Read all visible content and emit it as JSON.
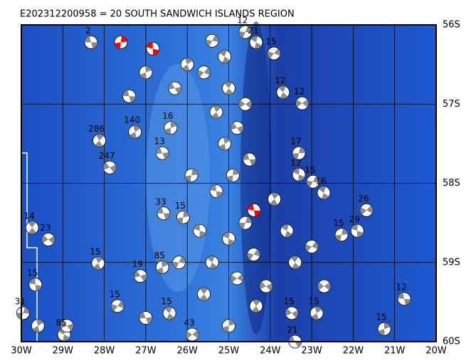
{
  "chart_data": {
    "type": "map",
    "title": "E202312200958 = 20 SOUTH SANDWICH ISLANDS REGION",
    "xlim": [
      -30,
      -20
    ],
    "ylim": [
      -60,
      -56
    ],
    "xticks": [
      {
        "value": -30,
        "label": "30W"
      },
      {
        "value": -29,
        "label": "29W"
      },
      {
        "value": -28,
        "label": "28W"
      },
      {
        "value": -27,
        "label": "27W"
      },
      {
        "value": -26,
        "label": "26W"
      },
      {
        "value": -25,
        "label": "25W"
      },
      {
        "value": -24,
        "label": "24W"
      },
      {
        "value": -23,
        "label": "23W"
      },
      {
        "value": -22,
        "label": "22W"
      },
      {
        "value": -21,
        "label": "21W"
      },
      {
        "value": -20,
        "label": "20W"
      }
    ],
    "yticks": [
      {
        "value": -56,
        "label": "56S"
      },
      {
        "value": -57,
        "label": "57S"
      },
      {
        "value": -58,
        "label": "58S"
      },
      {
        "value": -59,
        "label": "59S"
      },
      {
        "value": -60,
        "label": "60S"
      }
    ],
    "grid": true,
    "events": [
      {
        "lon": -28.32,
        "lat": -56.22,
        "label": "2"
      },
      {
        "lon": -27.6,
        "lat": -56.22,
        "color": "red"
      },
      {
        "lon": -26.83,
        "lat": -56.3,
        "color": "red"
      },
      {
        "lon": -24.6,
        "lat": -56.09,
        "label": "12"
      },
      {
        "lon": -24.34,
        "lat": -56.22,
        "label": "21"
      },
      {
        "lon": -23.91,
        "lat": -56.36,
        "label": "15"
      },
      {
        "lon": -23.69,
        "lat": -56.85,
        "label": "12"
      },
      {
        "lon": -23.23,
        "lat": -56.99,
        "label": "12"
      },
      {
        "lon": -28.12,
        "lat": -57.46,
        "label": "286"
      },
      {
        "lon": -27.87,
        "lat": -57.8,
        "label": "247"
      },
      {
        "lon": -27.26,
        "lat": -57.35,
        "label": "140"
      },
      {
        "lon": -26.6,
        "lat": -57.62,
        "label": "13"
      },
      {
        "lon": -26.4,
        "lat": -57.3,
        "label": "16"
      },
      {
        "lon": -24.39,
        "lat": -58.34,
        "color": "red"
      },
      {
        "lon": -23.31,
        "lat": -57.62,
        "label": "17"
      },
      {
        "lon": -23.31,
        "lat": -57.89,
        "label": "12"
      },
      {
        "lon": -22.97,
        "lat": -57.98,
        "label": "15"
      },
      {
        "lon": -22.71,
        "lat": -58.12,
        "label": "16"
      },
      {
        "lon": -21.68,
        "lat": -58.34,
        "label": "26"
      },
      {
        "lon": -29.74,
        "lat": -58.56,
        "label": "14"
      },
      {
        "lon": -29.35,
        "lat": -58.71,
        "label": "23"
      },
      {
        "lon": -28.15,
        "lat": -59.01,
        "label": "15"
      },
      {
        "lon": -27.13,
        "lat": -59.17,
        "label": "19"
      },
      {
        "lon": -26.6,
        "lat": -59.06,
        "label": "85"
      },
      {
        "lon": -26.57,
        "lat": -58.38,
        "label": "33"
      },
      {
        "lon": -26.1,
        "lat": -58.43,
        "label": "15"
      },
      {
        "lon": -29.66,
        "lat": -59.28,
        "label": "15"
      },
      {
        "lon": -29.96,
        "lat": -59.64,
        "label": "31"
      },
      {
        "lon": -28.97,
        "lat": -59.91,
        "label": "85"
      },
      {
        "lon": -27.68,
        "lat": -59.55,
        "label": "15"
      },
      {
        "lon": -26.43,
        "lat": -59.64,
        "label": "15"
      },
      {
        "lon": -25.88,
        "lat": -59.91,
        "label": "43"
      },
      {
        "lon": -24.34,
        "lat": -59.55
      },
      {
        "lon": -23.48,
        "lat": -59.64,
        "label": "15"
      },
      {
        "lon": -22.88,
        "lat": -59.64,
        "label": "15"
      },
      {
        "lon": -23.4,
        "lat": -60.0,
        "label": "21"
      },
      {
        "lon": -21.25,
        "lat": -59.84,
        "label": "15"
      },
      {
        "lon": -20.77,
        "lat": -59.46,
        "label": "12"
      },
      {
        "lon": -22.28,
        "lat": -58.65,
        "label": "15"
      },
      {
        "lon": -21.9,
        "lat": -58.6,
        "label": "29"
      },
      {
        "lon": -25.4,
        "lat": -56.2
      },
      {
        "lon": -25.1,
        "lat": -56.4
      },
      {
        "lon": -25.6,
        "lat": -56.6
      },
      {
        "lon": -25.0,
        "lat": -56.8
      },
      {
        "lon": -24.6,
        "lat": -57.0
      },
      {
        "lon": -25.3,
        "lat": -57.1
      },
      {
        "lon": -24.8,
        "lat": -57.3
      },
      {
        "lon": -25.1,
        "lat": -57.5
      },
      {
        "lon": -24.5,
        "lat": -57.7
      },
      {
        "lon": -24.9,
        "lat": -57.9
      },
      {
        "lon": -25.3,
        "lat": -58.1
      },
      {
        "lon": -24.6,
        "lat": -58.5
      },
      {
        "lon": -25.0,
        "lat": -58.7
      },
      {
        "lon": -24.4,
        "lat": -58.9
      },
      {
        "lon": -25.4,
        "lat": -59.0
      },
      {
        "lon": -24.8,
        "lat": -59.2
      },
      {
        "lon": -25.6,
        "lat": -59.4
      },
      {
        "lon": -24.1,
        "lat": -59.3
      },
      {
        "lon": -26.0,
        "lat": -56.5
      },
      {
        "lon": -26.3,
        "lat": -56.8
      },
      {
        "lon": -27.0,
        "lat": -56.6
      },
      {
        "lon": -27.4,
        "lat": -56.9
      },
      {
        "lon": -25.9,
        "lat": -57.9
      },
      {
        "lon": -25.7,
        "lat": -58.6
      },
      {
        "lon": -26.2,
        "lat": -59.0
      },
      {
        "lon": -23.6,
        "lat": -58.6
      },
      {
        "lon": -23.0,
        "lat": -58.8
      },
      {
        "lon": -23.4,
        "lat": -59.0
      },
      {
        "lon": -22.7,
        "lat": -59.3
      },
      {
        "lon": -23.9,
        "lat": -58.2
      },
      {
        "lon": -28.9,
        "lat": -59.8
      },
      {
        "lon": -29.6,
        "lat": -59.8
      },
      {
        "lon": -27.0,
        "lat": -59.7
      },
      {
        "lon": -25.0,
        "lat": -59.8
      }
    ]
  }
}
